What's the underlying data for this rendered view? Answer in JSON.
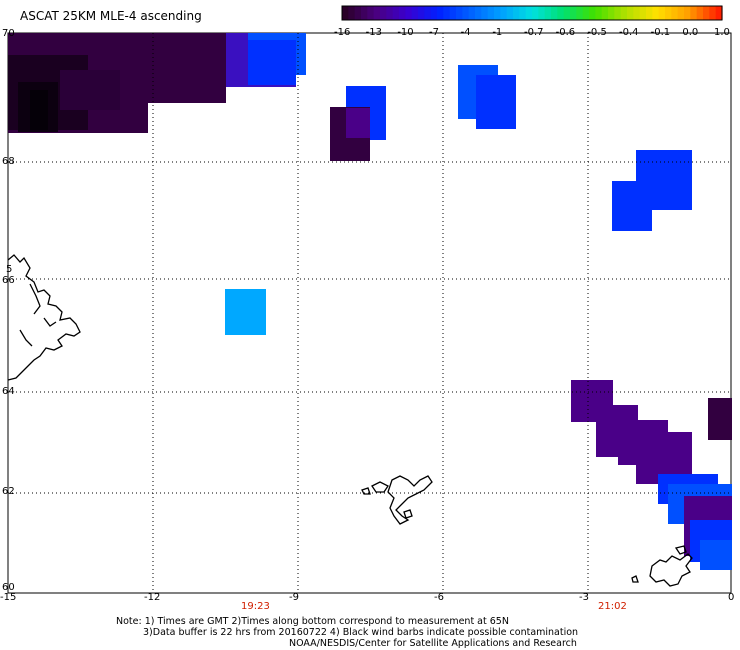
{
  "title": "ASCAT 25KM MLE-4 ascending",
  "colorbar": {
    "labels": [
      "-16",
      "-13",
      "-10",
      "-7",
      "-4",
      "-1",
      "-0.7",
      "-0.6",
      "-0.5",
      "-0.4",
      "-0.1",
      "0.0",
      "1.0"
    ],
    "colors": [
      "#2a0028",
      "#4a0080",
      "#3a00d0",
      "#0020ff",
      "#0060ff",
      "#00a0ff",
      "#00e0e0",
      "#00e070",
      "#40e000",
      "#b0e000",
      "#ffe000",
      "#ffa000",
      "#ff2000"
    ]
  },
  "axes": {
    "x_ticks": [
      "-15",
      "-12",
      "-9",
      "-6",
      "-3",
      "0"
    ],
    "y_ticks": [
      "70",
      "68",
      "66",
      "64",
      "62",
      "60"
    ],
    "stray_label": "5"
  },
  "times": [
    "19:23",
    "21:02"
  ],
  "notes": {
    "line1": "Note: 1) Times are GMT 2)Times along bottom correspond to measurement at 65N",
    "line2": "3)Data buffer is 22 hrs from 20160722 4) Black wind barbs indicate possible contamination",
    "line3": "NOAA/NESDIS/Center for Satellite Applications and Research"
  },
  "palette": {
    "dark": "#1a0020",
    "purple_dark": "#320040",
    "purple": "#4a0088",
    "indigo": "#3a10c0",
    "blue": "#0030ff",
    "blue_mid": "#0050ff",
    "sky": "#00a8ff",
    "coast": "#000000",
    "time_red": "#d02000"
  }
}
